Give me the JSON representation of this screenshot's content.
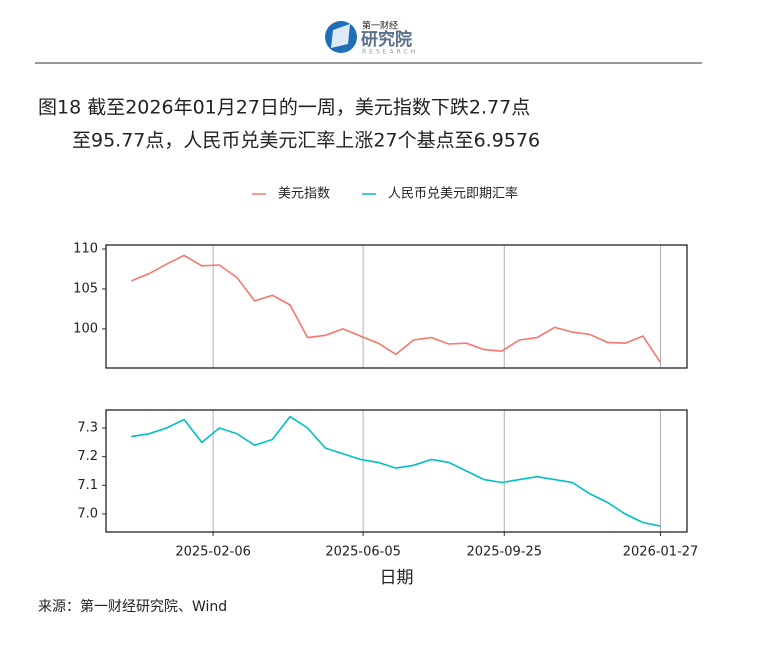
{
  "header": {
    "brand": "第一财经",
    "name": "研究院",
    "sub": "RESEARCH"
  },
  "title_lines": [
    "图18  截至2026年01月27日的一周，美元指数下跌2.77点",
    "至95.77点，人民币兑美元汇率上涨27个基点至6.9576"
  ],
  "source": "来源：第一财经研究院、Wind",
  "chart_data": [
    {
      "type": "line",
      "x": [
        "2024-12-03",
        "2024-12-17",
        "2024-12-31",
        "2025-01-14",
        "2025-01-28",
        "2025-02-11",
        "2025-02-25",
        "2025-03-11",
        "2025-03-25",
        "2025-04-08",
        "2025-04-22",
        "2025-05-06",
        "2025-05-20",
        "2025-06-03",
        "2025-06-17",
        "2025-07-01",
        "2025-07-15",
        "2025-07-29",
        "2025-08-12",
        "2025-08-26",
        "2025-09-09",
        "2025-09-23",
        "2025-10-07",
        "2025-10-21",
        "2025-11-04",
        "2025-11-18",
        "2025-12-02",
        "2025-12-16",
        "2025-12-30",
        "2026-01-13",
        "2026-01-27"
      ],
      "series": [
        {
          "name": "美元指数",
          "color": "#F8766D",
          "values": [
            106.0,
            106.9,
            108.1,
            109.2,
            107.9,
            108.0,
            106.4,
            103.5,
            104.2,
            103.0,
            98.9,
            99.2,
            100.0,
            99.1,
            98.2,
            96.8,
            98.6,
            98.9,
            98.1,
            98.2,
            97.4,
            97.2,
            98.6,
            98.9,
            100.2,
            99.6,
            99.3,
            98.3,
            98.2,
            99.1,
            95.77
          ]
        }
      ],
      "xlim": [
        "2024-11-13",
        "2026-02-17"
      ],
      "xticks": [
        "2025-02-06",
        "2025-06-05",
        "2025-09-25",
        "2026-01-27"
      ],
      "ylim": [
        95.1,
        110.5
      ],
      "yticks": [
        100,
        105,
        110
      ],
      "grid": true
    },
    {
      "type": "line",
      "x": [
        "2024-12-03",
        "2024-12-17",
        "2024-12-31",
        "2025-01-14",
        "2025-01-28",
        "2025-02-11",
        "2025-02-25",
        "2025-03-11",
        "2025-03-25",
        "2025-04-08",
        "2025-04-22",
        "2025-05-06",
        "2025-05-20",
        "2025-06-03",
        "2025-06-17",
        "2025-07-01",
        "2025-07-15",
        "2025-07-29",
        "2025-08-12",
        "2025-08-26",
        "2025-09-09",
        "2025-09-23",
        "2025-10-07",
        "2025-10-21",
        "2025-11-04",
        "2025-11-18",
        "2025-12-02",
        "2025-12-16",
        "2025-12-30",
        "2026-01-13",
        "2026-01-27"
      ],
      "series": [
        {
          "name": "人民币兑美元即期汇率",
          "color": "#00BFC4",
          "values": [
            7.27,
            7.28,
            7.3,
            7.33,
            7.25,
            7.3,
            7.28,
            7.24,
            7.26,
            7.34,
            7.3,
            7.23,
            7.21,
            7.19,
            7.18,
            7.16,
            7.17,
            7.19,
            7.18,
            7.15,
            7.12,
            7.11,
            7.12,
            7.13,
            7.12,
            7.11,
            7.07,
            7.04,
            7.0,
            6.97,
            6.9576
          ]
        }
      ],
      "xlim": [
        "2024-11-13",
        "2026-02-17"
      ],
      "xticks": [
        "2025-02-06",
        "2025-06-05",
        "2025-09-25",
        "2026-01-27"
      ],
      "xlabel": "日期",
      "ylim": [
        6.937,
        7.363
      ],
      "yticks": [
        {
          "value": 7,
          "label": "7.0"
        },
        7.1,
        7.2,
        7.3
      ],
      "grid": true
    }
  ]
}
